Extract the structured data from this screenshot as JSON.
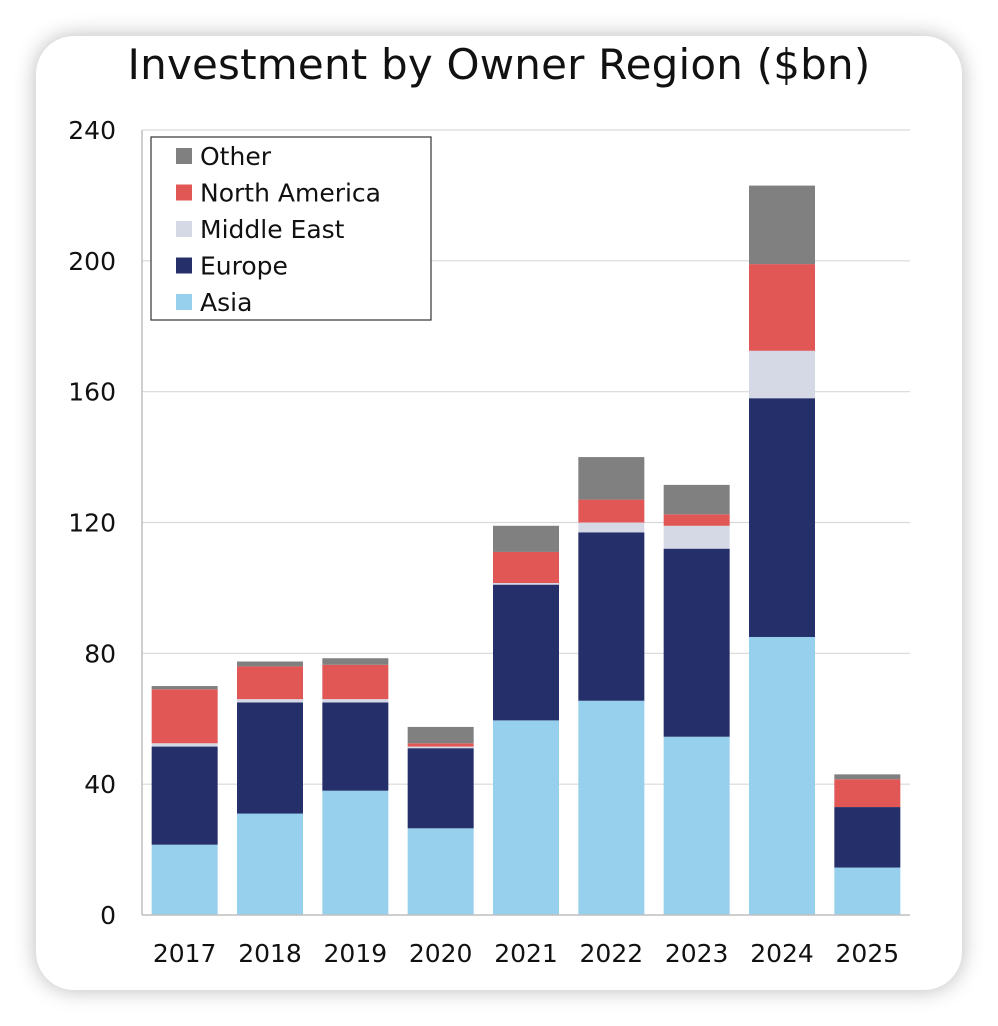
{
  "chart_data": {
    "type": "bar",
    "stacked": true,
    "title": "Investment by Owner Region ($bn)",
    "xlabel": "",
    "ylabel": "",
    "ylim": [
      0,
      240
    ],
    "yticks": [
      "0",
      "40",
      "80",
      "120",
      "160",
      "200",
      "240"
    ],
    "grid": true,
    "legend_position": "top-left",
    "categories": [
      "2017",
      "2018",
      "2019",
      "2020",
      "2021",
      "2022",
      "2023",
      "2024",
      "2025"
    ],
    "series": [
      {
        "name": "Asia",
        "color": "#97d0ec",
        "values": [
          21.5,
          31,
          38,
          26.5,
          59.5,
          65.5,
          54.5,
          85,
          14.5
        ]
      },
      {
        "name": "Europe",
        "color": "#25306b",
        "values": [
          30,
          34,
          27,
          24.5,
          41.5,
          51.5,
          57.5,
          73,
          18.5
        ]
      },
      {
        "name": "Middle East",
        "color": "#d5d9e6",
        "values": [
          1,
          1,
          1,
          0.5,
          0.5,
          3,
          7,
          14.5,
          0
        ]
      },
      {
        "name": "North America",
        "color": "#e05755",
        "values": [
          16.5,
          10,
          10.5,
          1,
          9.5,
          7,
          3.5,
          26.5,
          8.5
        ]
      },
      {
        "name": "Other",
        "color": "#808080",
        "values": [
          1,
          1.5,
          2,
          5,
          8,
          13,
          9,
          24,
          1.5
        ]
      }
    ],
    "legend_order": [
      "Other",
      "North America",
      "Middle East",
      "Europe",
      "Asia"
    ]
  }
}
